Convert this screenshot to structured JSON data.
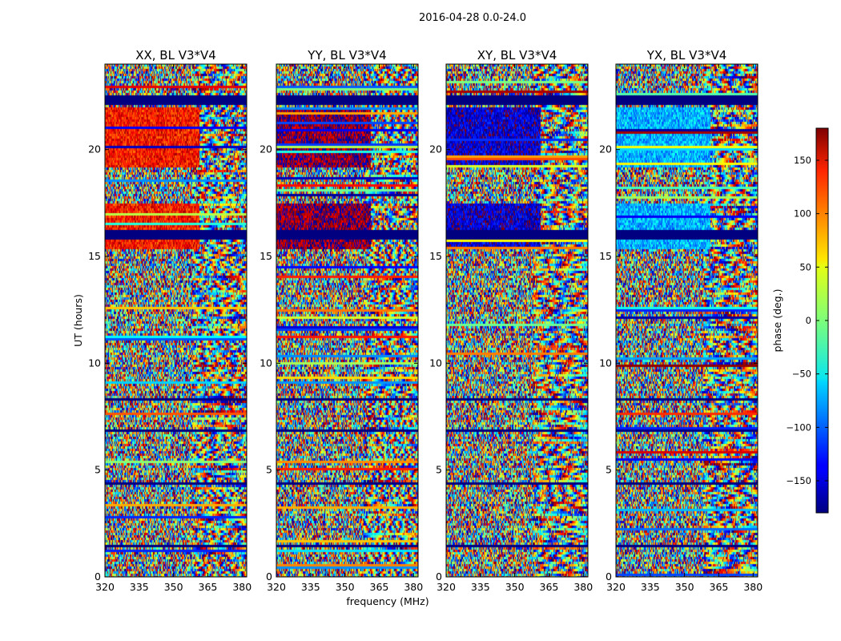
{
  "chart_data": {
    "type": "heatmap",
    "title": "2016-04-28 0.0-24.0",
    "xlabel": "frequency (MHz)",
    "ylabel": "UT (hours)",
    "xlim": [
      320,
      382
    ],
    "ylim": [
      0,
      24
    ],
    "x_ticks": [
      320,
      335,
      350,
      365,
      380
    ],
    "y_ticks": [
      0,
      5,
      10,
      15,
      20
    ],
    "panels": [
      {
        "title": "XX, BL V3*V4",
        "pol": "XX"
      },
      {
        "title": "YY, BL V3*V4",
        "pol": "YY"
      },
      {
        "title": "XY, BL V3*V4",
        "pol": "XY"
      },
      {
        "title": "YX, BL V3*V4",
        "pol": "YX"
      }
    ],
    "colorbar": {
      "label": "phase (deg.)",
      "range": [
        -180,
        180
      ],
      "ticks": [
        150,
        100,
        50,
        0,
        -50,
        -100,
        -150
      ],
      "tick_labels": [
        "150",
        "100",
        "50",
        "0",
        "−50",
        "−100",
        "−150"
      ],
      "colormap": "jet"
    },
    "features": {
      "blanked_hour_ranges": [
        [
          1.4,
          1.6
        ],
        [
          4.4,
          4.5
        ],
        [
          6.8,
          6.9
        ],
        [
          8.3,
          8.4
        ],
        [
          15.8,
          16.3
        ],
        [
          22.2,
          22.6
        ]
      ],
      "coherent_phase_region": {
        "freq_range": [
          320,
          361
        ],
        "hour_ranges": [
          [
            15.4,
            17.5
          ],
          [
            19.2,
            22.0
          ]
        ]
      }
    }
  }
}
